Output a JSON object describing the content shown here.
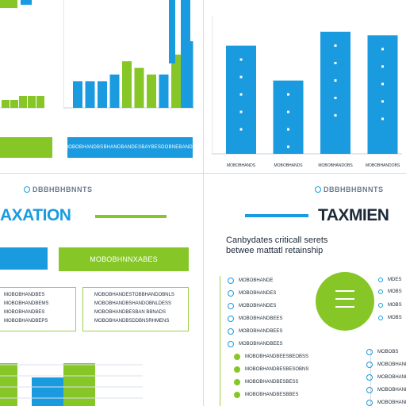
{
  "left_panel": {
    "chart_banner": "MOBOBHANDBSBHANDBANDESBAYBESDOBNEBANDS",
    "section_label": "DBBHBHBNNTS",
    "title": "AXATION",
    "blue_button": "",
    "green_button": "MOBOBHNNXABES",
    "box_left_lines": [
      "MOBOBHANDBES",
      "MOBOBHANDBEMS",
      "MOBOBHANDBES",
      "MOBOBHANDBEPS"
    ],
    "box_right_lines": [
      "MOBOBHANDESTOBBHANDOBNLS",
      "MOBOBHANDBSHANDOBNLDESS",
      "MOBOBHANDBESBAN BBNADS",
      "MOBOBHANDBSDDBNSRHMENS"
    ]
  },
  "right_panel": {
    "section_label": "DBBHBHBNNTS",
    "title": "TAXMIEN",
    "subtitle_line1": "Canbydates criticall serets",
    "subtitle_line2": "betwee mattatl retainship",
    "list_items": [
      "MOBOBHANDE",
      "MOBOBHANDES",
      "MOBOBHANDES",
      "MOBOBHANDBEES",
      "MOBOBHANDBEES",
      "MOBOBHANDBEES",
      "MOBOBHANDBEESBEOBSS",
      "MOBOBHANDBESBESOBNS",
      "MOBOBHANDBESBESS",
      "MOBOBHANDBESBBES"
    ],
    "donut_side_labels": [
      "MDES",
      "MOBS",
      "MOBS",
      "MOBS"
    ],
    "lower_right_items": [
      "MOBOBS",
      "MOBOBHANDES",
      "MOBOBHANDES",
      "MOBOBHANDES",
      "MOBOBHANDES"
    ]
  },
  "colors": {
    "blue": "#1a9be0",
    "green": "#86c727",
    "dark": "#1c2a38"
  },
  "chart_data": [
    {
      "type": "bar",
      "series": [
        {
          "name": "",
          "values": [
            2,
            2,
            3,
            3,
            3
          ]
        }
      ],
      "categories": [
        "",
        "",
        "",
        "",
        ""
      ]
    },
    {
      "type": "bar",
      "categories": [
        "",
        "",
        "",
        "",
        "",
        "",
        "",
        "",
        "",
        ""
      ],
      "series": [
        {
          "name": "",
          "values": [
            4,
            4,
            4,
            5,
            7,
            6,
            5,
            5,
            8,
            10
          ]
        }
      ],
      "bar_colors": [
        "#1a9be0",
        "#1a9be0",
        "#1a9be0",
        "#1a9be0",
        "#86c727",
        "#86c727",
        "#86c727",
        "#1a9be0",
        "#86c727",
        "#1a9be0"
      ],
      "data_labels": [
        "",
        "",
        "",
        "",
        "",
        "",
        "",
        "",
        "",
        ""
      ]
    },
    {
      "type": "bar",
      "categories": [
        "MOBOBHANDS",
        "MOBOBHANDS",
        "MOBOBHANDOBS",
        "MOBOBHANDOBS"
      ],
      "series": [
        {
          "name": "",
          "values": [
            62,
            42,
            70,
            68
          ]
        }
      ]
    },
    {
      "type": "bar",
      "categories": [
        "",
        "",
        "",
        ""
      ],
      "series": [
        {
          "name": "",
          "values": [
            3,
            2,
            3,
            2
          ]
        }
      ]
    },
    {
      "type": "pie",
      "values": [
        100
      ]
    }
  ]
}
